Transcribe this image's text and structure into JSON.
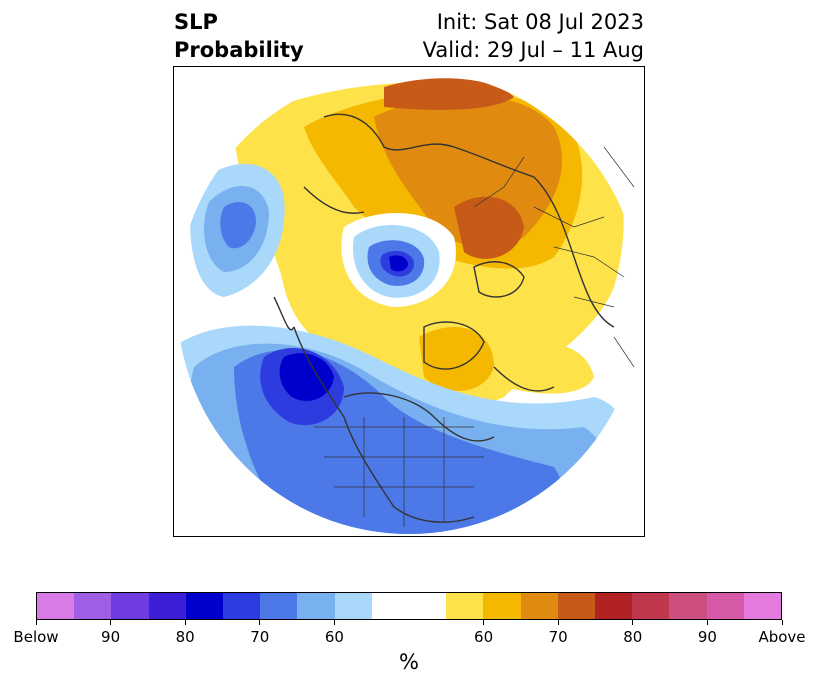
{
  "title": {
    "left": "SLP\nProbability",
    "left_line1": "SLP",
    "left_line2": "Probability",
    "right_line1": "Init: Sat 08 Jul 2023",
    "right_line2": "Valid: 29 Jul – 11 Aug"
  },
  "colorbar": {
    "colors": [
      "#d97ae6",
      "#a05de6",
      "#6e3ce0",
      "#3b1fd6",
      "#0000cc",
      "#2d3cde",
      "#4c78e8",
      "#78b0f0",
      "#aad8fa",
      "#ffffff",
      "#ffffff",
      "#fde24a",
      "#f5b800",
      "#e08a10",
      "#c85a18",
      "#b22222",
      "#c0384e",
      "#cc4f80",
      "#d65aa8",
      "#e47ade"
    ],
    "labels": [
      "Below",
      "90",
      "80",
      "70",
      "60",
      "60",
      "70",
      "80",
      "90",
      "Above"
    ],
    "units": "%"
  }
}
